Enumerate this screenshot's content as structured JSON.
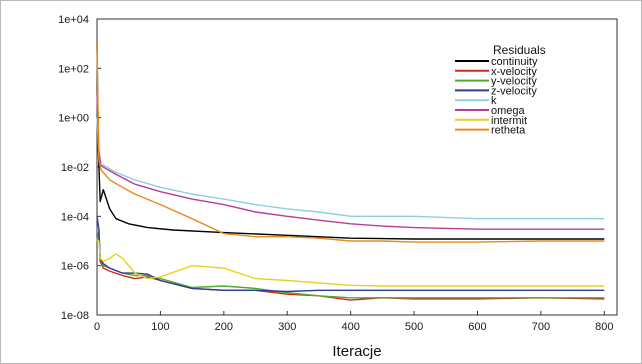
{
  "chart_data": {
    "type": "line",
    "title": "",
    "xlabel": "Iteracje",
    "ylabel": "",
    "yscale": "log",
    "xlim": [
      0,
      820
    ],
    "ylim": [
      1e-08,
      10000
    ],
    "x_ticks": [
      "0",
      "100",
      "200",
      "300",
      "400",
      "500",
      "600",
      "700",
      "800"
    ],
    "y_ticks": [
      "1e+04",
      "1e+02",
      "1e+00",
      "1e-02",
      "1e-04",
      "1e-06",
      "1e-08"
    ],
    "grid": false,
    "legend": {
      "title": "Residuals",
      "position": "top-right"
    },
    "series": [
      {
        "name": "continuity",
        "color": "#000000",
        "x": [
          0,
          2,
          5,
          10,
          20,
          30,
          50,
          80,
          120,
          200,
          300,
          400,
          500,
          600,
          700,
          800
        ],
        "y": [
          1000,
          0.05,
          0.0004,
          0.0012,
          0.0002,
          8e-05,
          5e-05,
          3.5e-05,
          2.8e-05,
          2.2e-05,
          1.7e-05,
          1.3e-05,
          1.2e-05,
          1.2e-05,
          1.2e-05,
          1.2e-05
        ]
      },
      {
        "name": "x-velocity",
        "color": "#d0281c",
        "x": [
          0,
          3,
          5,
          10,
          20,
          40,
          60,
          80,
          100,
          150,
          200,
          250,
          300,
          350,
          400,
          450,
          500,
          600,
          700,
          800
        ],
        "y": [
          1e-05,
          2e-05,
          1.5e-06,
          8e-07,
          6e-07,
          4e-07,
          3e-07,
          3.5e-07,
          2.5e-07,
          1.2e-07,
          1e-07,
          1e-07,
          7e-08,
          6e-08,
          4e-08,
          5e-08,
          4.5e-08,
          4.5e-08,
          5e-08,
          4.5e-08
        ]
      },
      {
        "name": "y-velocity",
        "color": "#55a832",
        "x": [
          0,
          3,
          5,
          10,
          20,
          40,
          60,
          80,
          100,
          150,
          200,
          250,
          300,
          350,
          400,
          450,
          500,
          600,
          700,
          800
        ],
        "y": [
          1e-05,
          2.5e-05,
          2e-06,
          1e-06,
          8e-07,
          5e-07,
          4e-07,
          4e-07,
          3e-07,
          1.3e-07,
          1.5e-07,
          1.2e-07,
          8e-08,
          6e-08,
          5e-08,
          5e-08,
          5e-08,
          5e-08,
          5e-08,
          5e-08
        ]
      },
      {
        "name": "z-velocity",
        "color": "#2c3c9a",
        "x": [
          0,
          3,
          5,
          10,
          20,
          40,
          60,
          80,
          100,
          150,
          200,
          250,
          300,
          350,
          400,
          450,
          500,
          600,
          700,
          800
        ],
        "y": [
          0.0001,
          3e-05,
          2e-06,
          1.2e-06,
          8e-07,
          5e-07,
          5e-07,
          4.5e-07,
          2.5e-07,
          1.2e-07,
          1e-07,
          1e-07,
          9e-08,
          1e-07,
          1e-07,
          1e-07,
          1e-07,
          1e-07,
          1e-07,
          1e-07
        ]
      },
      {
        "name": "k",
        "color": "#8ecfe0",
        "x": [
          0,
          3,
          6,
          10,
          30,
          60,
          100,
          150,
          200,
          250,
          300,
          350,
          400,
          450,
          500,
          600,
          700,
          800
        ],
        "y": [
          1,
          0.03,
          0.01,
          0.012,
          0.006,
          0.003,
          0.0015,
          0.0008,
          0.0005,
          0.0003,
          0.0002,
          0.00015,
          0.0001,
          0.0001,
          0.0001,
          8e-05,
          8e-05,
          8e-05
        ]
      },
      {
        "name": "omega",
        "color": "#b83c98",
        "x": [
          0,
          3,
          6,
          10,
          30,
          60,
          100,
          150,
          200,
          250,
          300,
          350,
          400,
          450,
          500,
          600,
          700,
          800
        ],
        "y": [
          10,
          0.05,
          0.012,
          0.01,
          0.005,
          0.002,
          0.001,
          0.0005,
          0.0003,
          0.00015,
          0.0001,
          7e-05,
          5e-05,
          4e-05,
          3.5e-05,
          3e-05,
          3e-05,
          3e-05
        ]
      },
      {
        "name": "intermit",
        "color": "#e8d21c",
        "x": [
          0,
          3,
          5,
          10,
          20,
          30,
          40,
          60,
          80,
          100,
          150,
          200,
          250,
          300,
          350,
          400,
          450,
          500,
          600,
          700,
          800
        ],
        "y": [
          1e-05,
          1e-05,
          2e-06,
          1.5e-06,
          2e-06,
          3e-06,
          2e-06,
          5e-07,
          3e-07,
          3.5e-07,
          1e-06,
          8e-07,
          3e-07,
          2.5e-07,
          2e-07,
          1.6e-07,
          1.5e-07,
          1.5e-07,
          1.5e-07,
          1.5e-07,
          1.5e-07
        ]
      },
      {
        "name": "retheta",
        "color": "#e88a1c",
        "x": [
          0,
          3,
          6,
          10,
          20,
          40,
          60,
          100,
          150,
          200,
          250,
          300,
          350,
          400,
          450,
          500,
          600,
          700,
          800
        ],
        "y": [
          1000,
          0.02,
          0.008,
          0.006,
          0.003,
          0.0015,
          0.0008,
          0.0003,
          8e-05,
          2e-05,
          1.5e-05,
          1.5e-05,
          1.3e-05,
          1e-05,
          1e-05,
          9e-06,
          9e-06,
          1e-05,
          1e-05
        ]
      }
    ]
  }
}
